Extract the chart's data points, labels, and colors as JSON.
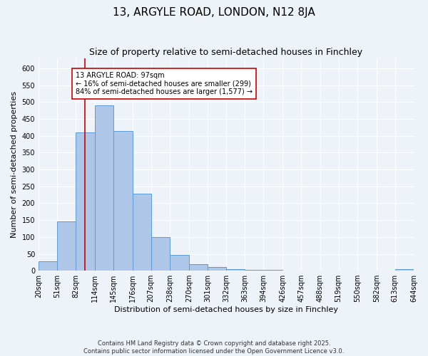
{
  "title": "13, ARGYLE ROAD, LONDON, N12 8JA",
  "subtitle": "Size of property relative to semi-detached houses in Finchley",
  "xlabel": "Distribution of semi-detached houses by size in Finchley",
  "ylabel": "Number of semi-detached properties",
  "bin_edges": [
    20,
    51,
    82,
    114,
    145,
    176,
    207,
    238,
    270,
    301,
    332,
    363,
    394,
    426,
    457,
    488,
    519,
    550,
    582,
    613,
    644
  ],
  "bar_heights": [
    28,
    145,
    410,
    490,
    415,
    228,
    100,
    46,
    20,
    10,
    5,
    3,
    3,
    0,
    0,
    0,
    0,
    0,
    0,
    5
  ],
  "bar_color": "#aec6e8",
  "bar_edgecolor": "#5b9bd5",
  "bar_linewidth": 0.7,
  "red_line_x": 97,
  "red_line_color": "#cc0000",
  "ylim": [
    0,
    630
  ],
  "yticks": [
    0,
    50,
    100,
    150,
    200,
    250,
    300,
    350,
    400,
    450,
    500,
    550,
    600
  ],
  "annotation_text": "13 ARGYLE ROAD: 97sqm\n← 16% of semi-detached houses are smaller (299)\n84% of semi-detached houses are larger (1,577) →",
  "bg_color": "#eef2f9",
  "grid_color": "#ffffff",
  "footnote1": "Contains HM Land Registry data © Crown copyright and database right 2025.",
  "footnote2": "Contains public sector information licensed under the Open Government Licence v3.0.",
  "title_fontsize": 11,
  "subtitle_fontsize": 9,
  "tick_fontsize": 7,
  "label_fontsize": 8,
  "annotation_fontsize": 7
}
